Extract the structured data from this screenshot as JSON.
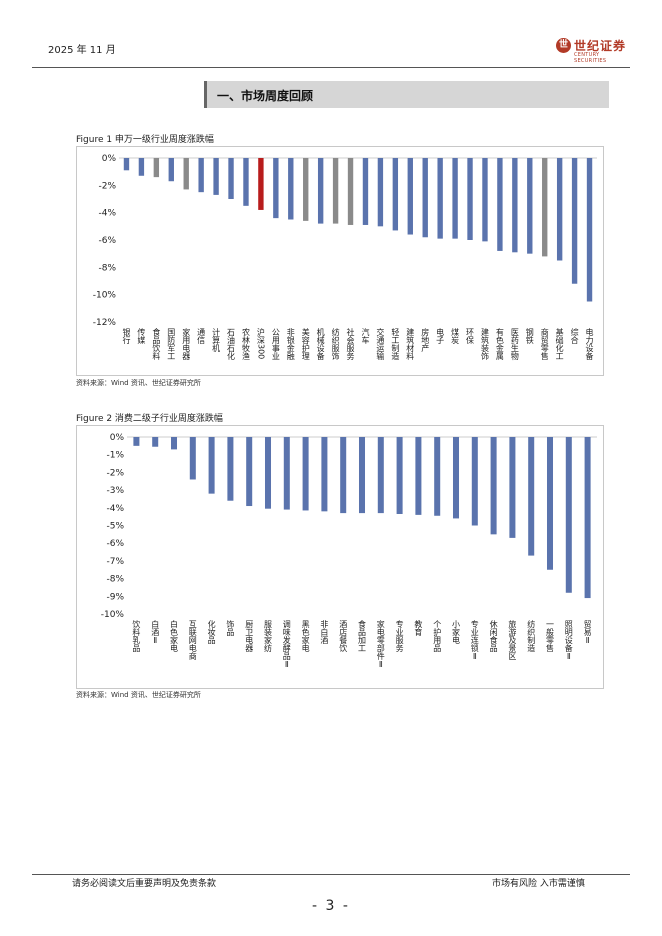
{
  "header": {
    "date": "2025 年 11 月",
    "brand_cn": "世纪证券",
    "brand_en": "CENTURY SECURITIES",
    "logo_glyph": "世"
  },
  "section": {
    "title": "一、市场周度回顾"
  },
  "figure1": {
    "title": "Figure 1  申万一级行业周度涨跌幅",
    "source": "资料来源：Wind 资讯、世纪证券研究所"
  },
  "figure2": {
    "title": "Figure 2 消费二级子行业周度涨跌幅",
    "source": "资料来源：Wind 资讯、世纪证券研究所"
  },
  "footer": {
    "disclaimer": "请务必阅读文后重要声明及免责条款",
    "risk": "市场有风险  入市需谨慎",
    "page": "- 3 -"
  },
  "colors": {
    "bar_default": "#5a73ad",
    "bar_gray": "#8a8a8a",
    "bar_highlight": "#b81c1c",
    "brand": "#b23a27"
  },
  "chart_data": [
    {
      "type": "bar",
      "title": "申万一级行业周度涨跌幅",
      "ylim": [
        -12,
        0
      ],
      "yticks": [
        "0%",
        "-2%",
        "-4%",
        "-6%",
        "-8%",
        "-10%",
        "-12%"
      ],
      "categories": [
        "银行",
        "传媒",
        "食品饮料",
        "国防军工",
        "家用电器",
        "通信",
        "计算机",
        "石油石化",
        "农林牧渔",
        "沪深300",
        "公用事业",
        "非银金融",
        "美容护理",
        "机械设备",
        "纺织服饰",
        "社会服务",
        "汽车",
        "交通运输",
        "轻工制造",
        "建筑材料",
        "房地产",
        "电子",
        "煤炭",
        "环保",
        "建筑装饰",
        "有色金属",
        "医药生物",
        "钢铁",
        "商贸零售",
        "基础化工",
        "综合",
        "电力设备"
      ],
      "values": [
        -0.9,
        -1.3,
        -1.4,
        -1.7,
        -2.3,
        -2.5,
        -2.7,
        -3.0,
        -3.5,
        -3.8,
        -4.4,
        -4.5,
        -4.6,
        -4.8,
        -4.8,
        -4.9,
        -4.9,
        -5.0,
        -5.3,
        -5.6,
        -5.8,
        -5.9,
        -5.9,
        -6.0,
        -6.1,
        -6.8,
        -6.9,
        -7.0,
        -7.2,
        -7.5,
        -9.2,
        -10.5
      ],
      "bar_styles": [
        "default",
        "default",
        "gray",
        "default",
        "gray",
        "default",
        "default",
        "default",
        "default",
        "highlight",
        "default",
        "default",
        "gray",
        "default",
        "gray",
        "gray",
        "default",
        "default",
        "default",
        "default",
        "default",
        "default",
        "default",
        "default",
        "default",
        "default",
        "default",
        "default",
        "gray",
        "default",
        "default",
        "default"
      ]
    },
    {
      "type": "bar",
      "title": "消费二级子行业周度涨跌幅",
      "ylim": [
        -10,
        0
      ],
      "yticks": [
        "0%",
        "-1%",
        "-2%",
        "-3%",
        "-4%",
        "-5%",
        "-6%",
        "-7%",
        "-8%",
        "-9%",
        "-10%"
      ],
      "categories": [
        "饮料乳品",
        "白酒Ⅱ",
        "白色家电",
        "互联网电商",
        "化妆品",
        "饰品",
        "厨卫电器",
        "服装家纺",
        "调味发酵品Ⅱ",
        "黑色家电",
        "非白酒",
        "酒店餐饮",
        "食品加工",
        "家电零部件Ⅱ",
        "专业服务",
        "教育",
        "个护用品",
        "小家电",
        "专业连锁Ⅱ",
        "休闲食品",
        "旅游及景区",
        "纺织制造",
        "一般零售",
        "照明设备Ⅱ",
        "贸易Ⅱ"
      ],
      "values": [
        -0.5,
        -0.55,
        -0.7,
        -2.4,
        -3.2,
        -3.6,
        -3.9,
        -4.05,
        -4.1,
        -4.15,
        -4.2,
        -4.3,
        -4.3,
        -4.3,
        -4.35,
        -4.4,
        -4.45,
        -4.6,
        -5.0,
        -5.5,
        -5.7,
        -6.7,
        -7.5,
        -8.8,
        -9.1
      ]
    }
  ]
}
